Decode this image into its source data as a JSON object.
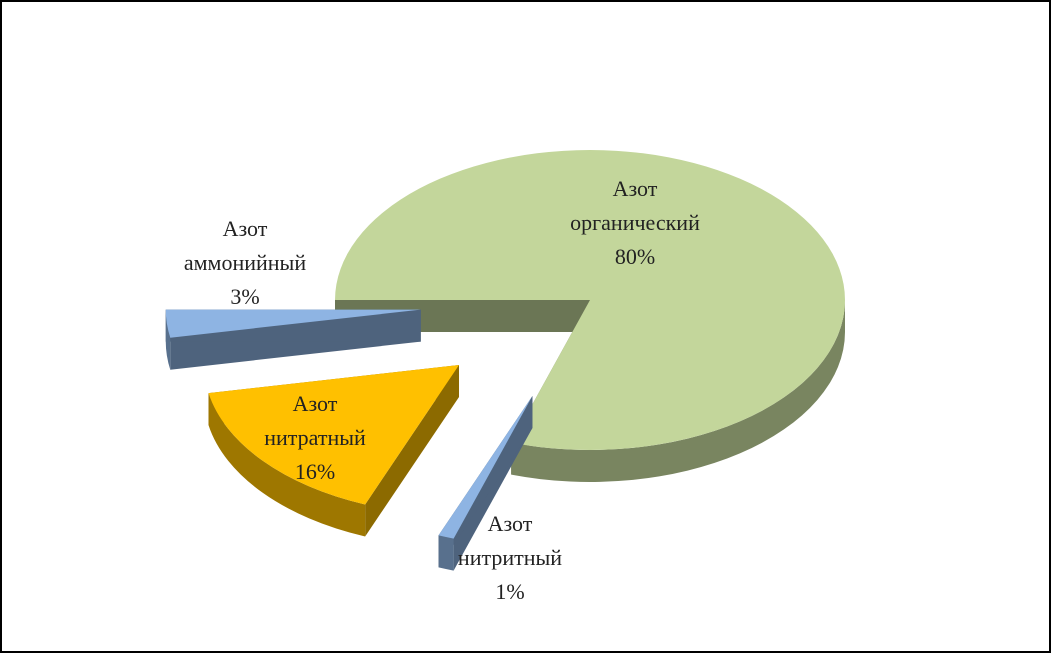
{
  "chart_data": {
    "type": "pie3d",
    "categories": [
      "Азот органический",
      "Азот нитритный",
      "Азот нитратный",
      "Азот аммонийный"
    ],
    "values": [
      80,
      1,
      16,
      3
    ],
    "value_labels": [
      "80%",
      "1%",
      "16%",
      "3%"
    ],
    "colors": [
      "#c3d69b",
      "#8eb4e3",
      "#ffc000",
      "#8eb4e3"
    ]
  }
}
